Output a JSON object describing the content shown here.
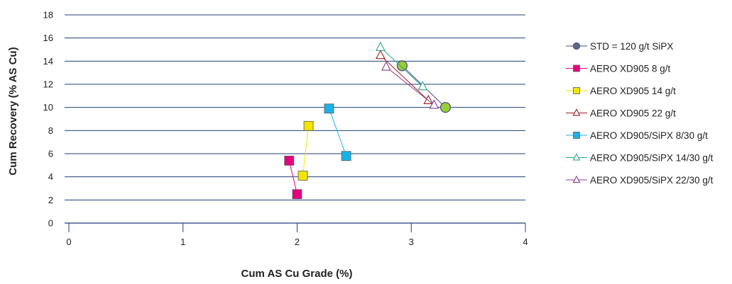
{
  "chart_data": {
    "type": "scatter",
    "xlabel": "Cum AS Cu Grade (%)",
    "ylabel": "Cum Recovery (% AS Cu)",
    "xlim": [
      0,
      4
    ],
    "ylim": [
      0,
      18
    ],
    "x_ticks": [
      0,
      1,
      2,
      3,
      4
    ],
    "y_ticks": [
      0,
      2,
      4,
      6,
      8,
      10,
      12,
      14,
      16,
      18
    ],
    "grid": "horizontal",
    "legend_position": "right",
    "series": [
      {
        "name": "STD = 120 g/t SiPX",
        "marker": "circle",
        "color": "#3d4a8c",
        "fill": "#9acd32",
        "points": [
          [
            2.92,
            13.6
          ],
          [
            3.3,
            10.0
          ]
        ]
      },
      {
        "name": "AERO XD905 8 g/t",
        "marker": "square",
        "color": "#e6007e",
        "fill": "#e6007e",
        "points": [
          [
            1.93,
            5.4
          ],
          [
            2.0,
            2.5
          ]
        ]
      },
      {
        "name": "AERO XD905 14 g/t",
        "marker": "square",
        "color": "#f5e400",
        "fill": "#f5e400",
        "points": [
          [
            2.1,
            8.4
          ],
          [
            2.05,
            4.1
          ]
        ]
      },
      {
        "name": "AERO XD905 22 g/t",
        "marker": "triangle",
        "color": "#a01e23",
        "fill": "none",
        "points": [
          [
            2.73,
            14.5
          ],
          [
            3.15,
            10.6
          ]
        ]
      },
      {
        "name": "AERO XD905/SiPX 8/30 g/t",
        "marker": "square",
        "color": "#1bb3e6",
        "fill": "#1bb3e6",
        "points": [
          [
            2.28,
            9.9
          ],
          [
            2.43,
            5.8
          ]
        ]
      },
      {
        "name": "AERO XD905/SiPX 14/30 g/t",
        "marker": "triangle",
        "color": "#2aaa8a",
        "fill": "none",
        "points": [
          [
            2.73,
            15.2
          ],
          [
            3.1,
            11.8
          ]
        ]
      },
      {
        "name": "AERO XD905/SiPX 22/30 g/t",
        "marker": "triangle",
        "color": "#8b3a8b",
        "fill": "none",
        "points": [
          [
            2.78,
            13.5
          ],
          [
            3.2,
            10.2
          ]
        ]
      }
    ]
  }
}
